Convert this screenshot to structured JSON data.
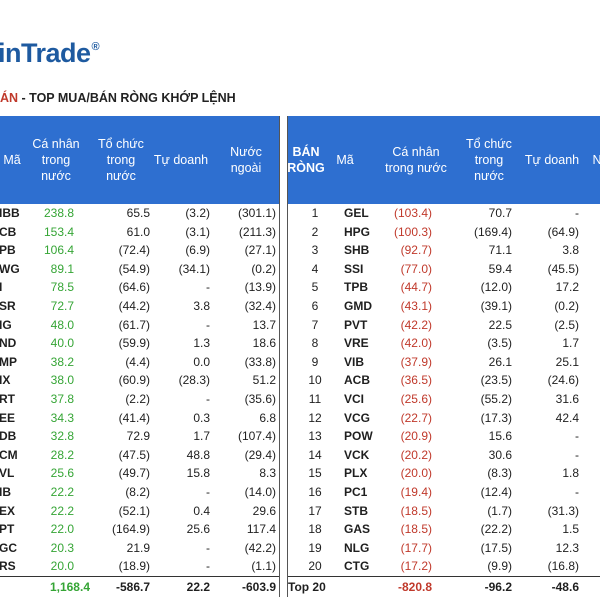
{
  "header": {
    "logo_text": "inTrade",
    "logo_mark": "®",
    "subtitle_red": "ÁN",
    "subtitle_rest": " - TOP MUA/BÁN RÒNG KHỚP LỆNH"
  },
  "left_table": {
    "columns": [
      "Mã",
      "Cá nhân trong nước",
      "Tổ chức trong nước",
      "Tự doanh",
      "Nước ngoài"
    ],
    "column_lines": [
      [
        "Mã"
      ],
      [
        "Cá nhân",
        "trong",
        "nước"
      ],
      [
        "Tổ chức",
        "trong",
        "nước"
      ],
      [
        "Tự doanh"
      ],
      [
        "Nước",
        "ngoài"
      ]
    ],
    "rows": [
      {
        "ticker": "IBB",
        "ca_nhan": "238.8",
        "to_chuc": "65.5",
        "tu_doanh": "(3.2)",
        "nuoc_ngoai": "(301.1)"
      },
      {
        "ticker": "CB",
        "ca_nhan": "153.4",
        "to_chuc": "61.0",
        "tu_doanh": "(3.1)",
        "nuoc_ngoai": "(211.3)"
      },
      {
        "ticker": "PB",
        "ca_nhan": "106.4",
        "to_chuc": "(72.4)",
        "tu_doanh": "(6.9)",
        "nuoc_ngoai": "(27.1)"
      },
      {
        "ticker": "WG",
        "ca_nhan": "89.1",
        "to_chuc": "(54.9)",
        "tu_doanh": "(34.1)",
        "nuoc_ngoai": "(0.2)"
      },
      {
        "ticker": "I",
        "ca_nhan": "78.5",
        "to_chuc": "(64.6)",
        "tu_doanh": "-",
        "nuoc_ngoai": "(13.9)"
      },
      {
        "ticker": "SR",
        "ca_nhan": "72.7",
        "to_chuc": "(44.2)",
        "tu_doanh": "3.8",
        "nuoc_ngoai": "(32.4)"
      },
      {
        "ticker": "IG",
        "ca_nhan": "48.0",
        "to_chuc": "(61.7)",
        "tu_doanh": "-",
        "nuoc_ngoai": "13.7"
      },
      {
        "ticker": "ND",
        "ca_nhan": "40.0",
        "to_chuc": "(59.9)",
        "tu_doanh": "1.3",
        "nuoc_ngoai": "18.6"
      },
      {
        "ticker": "MP",
        "ca_nhan": "38.2",
        "to_chuc": "(4.4)",
        "tu_doanh": "0.0",
        "nuoc_ngoai": "(33.8)"
      },
      {
        "ticker": "IX",
        "ca_nhan": "38.0",
        "to_chuc": "(60.9)",
        "tu_doanh": "(28.3)",
        "nuoc_ngoai": "51.2"
      },
      {
        "ticker": "RT",
        "ca_nhan": "37.8",
        "to_chuc": "(2.2)",
        "tu_doanh": "-",
        "nuoc_ngoai": "(35.6)"
      },
      {
        "ticker": "EE",
        "ca_nhan": "34.3",
        "to_chuc": "(41.4)",
        "tu_doanh": "0.3",
        "nuoc_ngoai": "6.8"
      },
      {
        "ticker": "DB",
        "ca_nhan": "32.8",
        "to_chuc": "72.9",
        "tu_doanh": "1.7",
        "nuoc_ngoai": "(107.4)"
      },
      {
        "ticker": "CM",
        "ca_nhan": "28.2",
        "to_chuc": "(47.5)",
        "tu_doanh": "48.8",
        "nuoc_ngoai": "(29.4)"
      },
      {
        "ticker": "VL",
        "ca_nhan": "25.6",
        "to_chuc": "(49.7)",
        "tu_doanh": "15.8",
        "nuoc_ngoai": "8.3"
      },
      {
        "ticker": "IB",
        "ca_nhan": "22.2",
        "to_chuc": "(8.2)",
        "tu_doanh": "-",
        "nuoc_ngoai": "(14.0)"
      },
      {
        "ticker": "EX",
        "ca_nhan": "22.2",
        "to_chuc": "(52.1)",
        "tu_doanh": "0.4",
        "nuoc_ngoai": "29.6"
      },
      {
        "ticker": "PT",
        "ca_nhan": "22.0",
        "to_chuc": "(164.9)",
        "tu_doanh": "25.6",
        "nuoc_ngoai": "117.4"
      },
      {
        "ticker": "GC",
        "ca_nhan": "20.3",
        "to_chuc": "21.9",
        "tu_doanh": "-",
        "nuoc_ngoai": "(42.2)"
      },
      {
        "ticker": "RS",
        "ca_nhan": "20.0",
        "to_chuc": "(18.9)",
        "tu_doanh": "-",
        "nuoc_ngoai": "(1.1)"
      }
    ],
    "total": {
      "ca_nhan": "1,168.4",
      "to_chuc": "-586.7",
      "tu_doanh": "22.2",
      "nuoc_ngoai": "-603.9"
    }
  },
  "right_table": {
    "column_lines": [
      [
        "BÁN",
        "RÒNG"
      ],
      [
        "Mã"
      ],
      [
        "Cá nhân",
        "trong nước"
      ],
      [
        "Tổ chức",
        "trong",
        "nước"
      ],
      [
        "Tự doanh"
      ],
      [
        "N"
      ]
    ],
    "rows": [
      {
        "rank": "1",
        "ticker": "GEL",
        "ca_nhan": "(103.4)",
        "to_chuc": "70.7",
        "tu_doanh": "-"
      },
      {
        "rank": "2",
        "ticker": "HPG",
        "ca_nhan": "(100.3)",
        "to_chuc": "(169.4)",
        "tu_doanh": "(64.9)"
      },
      {
        "rank": "3",
        "ticker": "SHB",
        "ca_nhan": "(92.7)",
        "to_chuc": "71.1",
        "tu_doanh": "3.8"
      },
      {
        "rank": "4",
        "ticker": "SSI",
        "ca_nhan": "(77.0)",
        "to_chuc": "59.4",
        "tu_doanh": "(45.5)"
      },
      {
        "rank": "5",
        "ticker": "TPB",
        "ca_nhan": "(44.7)",
        "to_chuc": "(12.0)",
        "tu_doanh": "17.2"
      },
      {
        "rank": "6",
        "ticker": "GMD",
        "ca_nhan": "(43.1)",
        "to_chuc": "(39.1)",
        "tu_doanh": "(0.2)"
      },
      {
        "rank": "7",
        "ticker": "PVT",
        "ca_nhan": "(42.2)",
        "to_chuc": "22.5",
        "tu_doanh": "(2.5)"
      },
      {
        "rank": "8",
        "ticker": "VRE",
        "ca_nhan": "(42.0)",
        "to_chuc": "(3.5)",
        "tu_doanh": "1.7"
      },
      {
        "rank": "9",
        "ticker": "VIB",
        "ca_nhan": "(37.9)",
        "to_chuc": "26.1",
        "tu_doanh": "25.1"
      },
      {
        "rank": "10",
        "ticker": "ACB",
        "ca_nhan": "(36.5)",
        "to_chuc": "(23.5)",
        "tu_doanh": "(24.6)"
      },
      {
        "rank": "11",
        "ticker": "VCI",
        "ca_nhan": "(25.6)",
        "to_chuc": "(55.2)",
        "tu_doanh": "31.6"
      },
      {
        "rank": "12",
        "ticker": "VCG",
        "ca_nhan": "(22.7)",
        "to_chuc": "(17.3)",
        "tu_doanh": "42.4"
      },
      {
        "rank": "13",
        "ticker": "POW",
        "ca_nhan": "(20.9)",
        "to_chuc": "15.6",
        "tu_doanh": "-"
      },
      {
        "rank": "14",
        "ticker": "VCK",
        "ca_nhan": "(20.2)",
        "to_chuc": "30.6",
        "tu_doanh": "-"
      },
      {
        "rank": "15",
        "ticker": "PLX",
        "ca_nhan": "(20.0)",
        "to_chuc": "(8.3)",
        "tu_doanh": "1.8"
      },
      {
        "rank": "16",
        "ticker": "PC1",
        "ca_nhan": "(19.4)",
        "to_chuc": "(12.4)",
        "tu_doanh": "-"
      },
      {
        "rank": "17",
        "ticker": "STB",
        "ca_nhan": "(18.5)",
        "to_chuc": "(1.7)",
        "tu_doanh": "(31.3)"
      },
      {
        "rank": "18",
        "ticker": "GAS",
        "ca_nhan": "(18.5)",
        "to_chuc": "(22.2)",
        "tu_doanh": "1.5"
      },
      {
        "rank": "19",
        "ticker": "NLG",
        "ca_nhan": "(17.7)",
        "to_chuc": "(17.5)",
        "tu_doanh": "12.3"
      },
      {
        "rank": "20",
        "ticker": "CTG",
        "ca_nhan": "(17.2)",
        "to_chuc": "(9.9)",
        "tu_doanh": "(16.8)"
      }
    ],
    "total": {
      "label": "Top 20",
      "ca_nhan": "-820.8",
      "to_chuc": "-96.2",
      "tu_doanh": "-48.6"
    }
  },
  "colors": {
    "header_bg": "#2e6fd0",
    "buy_green": "#35a535",
    "sell_red": "#c0392b",
    "logo_blue": "#1e5aa0"
  }
}
